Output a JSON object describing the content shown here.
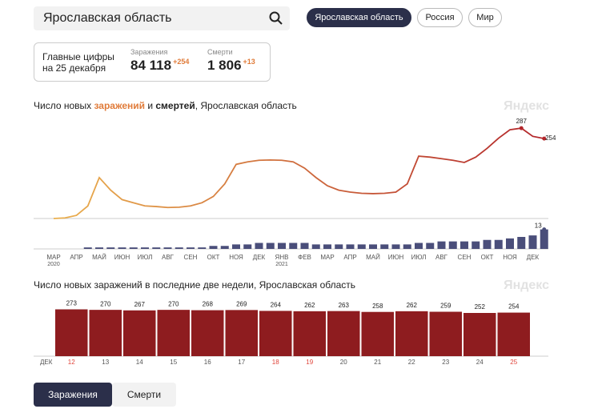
{
  "search": {
    "query": "Ярославская область"
  },
  "region_tabs": [
    {
      "label": "Ярославская область",
      "active": true
    },
    {
      "label": "Россия",
      "active": false
    },
    {
      "label": "Мир",
      "active": false
    }
  ],
  "summary": {
    "title_lines": [
      "Главные цифры",
      "на 25 декабря"
    ],
    "stats": [
      {
        "label": "Заражения",
        "value": "84 118",
        "delta": "+254"
      },
      {
        "label": "Смерти",
        "value": "1 806",
        "delta": "+13"
      }
    ]
  },
  "chart_data": [
    {
      "type": "line",
      "title_parts": [
        "Число новых ",
        "заражений",
        " и ",
        "смертей",
        ", Ярославская область"
      ],
      "watermark": "Яндекс",
      "categories": [
        "МАР",
        null,
        "АПР",
        null,
        "МАЙ",
        null,
        "ИЮН",
        null,
        "ИЮЛ",
        null,
        "АВГ",
        null,
        "СЕН",
        null,
        "ОКТ",
        null,
        "НОЯ",
        null,
        "ДЕК",
        null,
        "ЯНВ",
        null,
        "ФЕВ",
        null,
        "МАР",
        null,
        "АПР",
        null,
        "МАЙ",
        null,
        "ИЮН",
        null,
        "ИЮЛ",
        null,
        "АВГ",
        null,
        "СЕН",
        null,
        "ОКТ",
        null,
        "НОЯ",
        null,
        "ДЕК",
        null
      ],
      "year_labels": [
        "2020",
        null,
        null,
        null,
        null,
        null,
        null,
        null,
        null,
        null,
        null,
        null,
        null,
        null,
        null,
        null,
        null,
        null,
        null,
        null,
        "2021",
        null,
        null,
        null,
        null,
        null,
        null,
        null,
        null,
        null,
        null,
        null,
        null,
        null,
        null,
        null,
        null,
        null,
        null,
        null,
        null,
        null,
        null,
        null
      ],
      "ylim": [
        0,
        300
      ],
      "y2lim": [
        0,
        16
      ],
      "series": [
        {
          "color": "#eab04e",
          "color_end": "#b3262b",
          "values": [
            0,
            2,
            10,
            40,
            130,
            90,
            60,
            50,
            40,
            38,
            35,
            36,
            40,
            50,
            70,
            110,
            172,
            180,
            185,
            186,
            185,
            180,
            160,
            130,
            104,
            90,
            84,
            80,
            79,
            80,
            84,
            110,
            198,
            195,
            190,
            185,
            178,
            195,
            223,
            255,
            282,
            287,
            261,
            254
          ]
        },
        {
          "color": "#4a4e7a",
          "axis": "y2",
          "type": "bar",
          "values": [
            0,
            0,
            0,
            1,
            1,
            1,
            1,
            1,
            1,
            1,
            1,
            1,
            1,
            1,
            2,
            2,
            3,
            3,
            4,
            4,
            4,
            4,
            4,
            3,
            3,
            3,
            3,
            3,
            3,
            3,
            3,
            3,
            4,
            4,
            5,
            5,
            5,
            5,
            6,
            6,
            7,
            8,
            9,
            13
          ]
        }
      ]
    },
    {
      "type": "bar",
      "title": "Число новых заражений в последние две недели, Ярославская область",
      "watermark": "Яндекс",
      "x_label": "ДЕК",
      "categories": [
        "12",
        "13",
        "14",
        "15",
        "16",
        "17",
        "18",
        "19",
        "20",
        "21",
        "22",
        "23",
        "24",
        "25"
      ],
      "weekend": [
        true,
        false,
        false,
        false,
        false,
        false,
        true,
        true,
        false,
        false,
        false,
        false,
        false,
        true
      ],
      "values": [
        273,
        270,
        267,
        270,
        268,
        269,
        264,
        262,
        263,
        258,
        262,
        259,
        252,
        254
      ],
      "color": "#8e1c1f",
      "weekend_color": "#e0443a",
      "ylim": [
        0,
        280
      ]
    }
  ],
  "view_tabs": [
    {
      "label": "Заражения",
      "active": true
    },
    {
      "label": "Смерти",
      "active": false
    }
  ]
}
